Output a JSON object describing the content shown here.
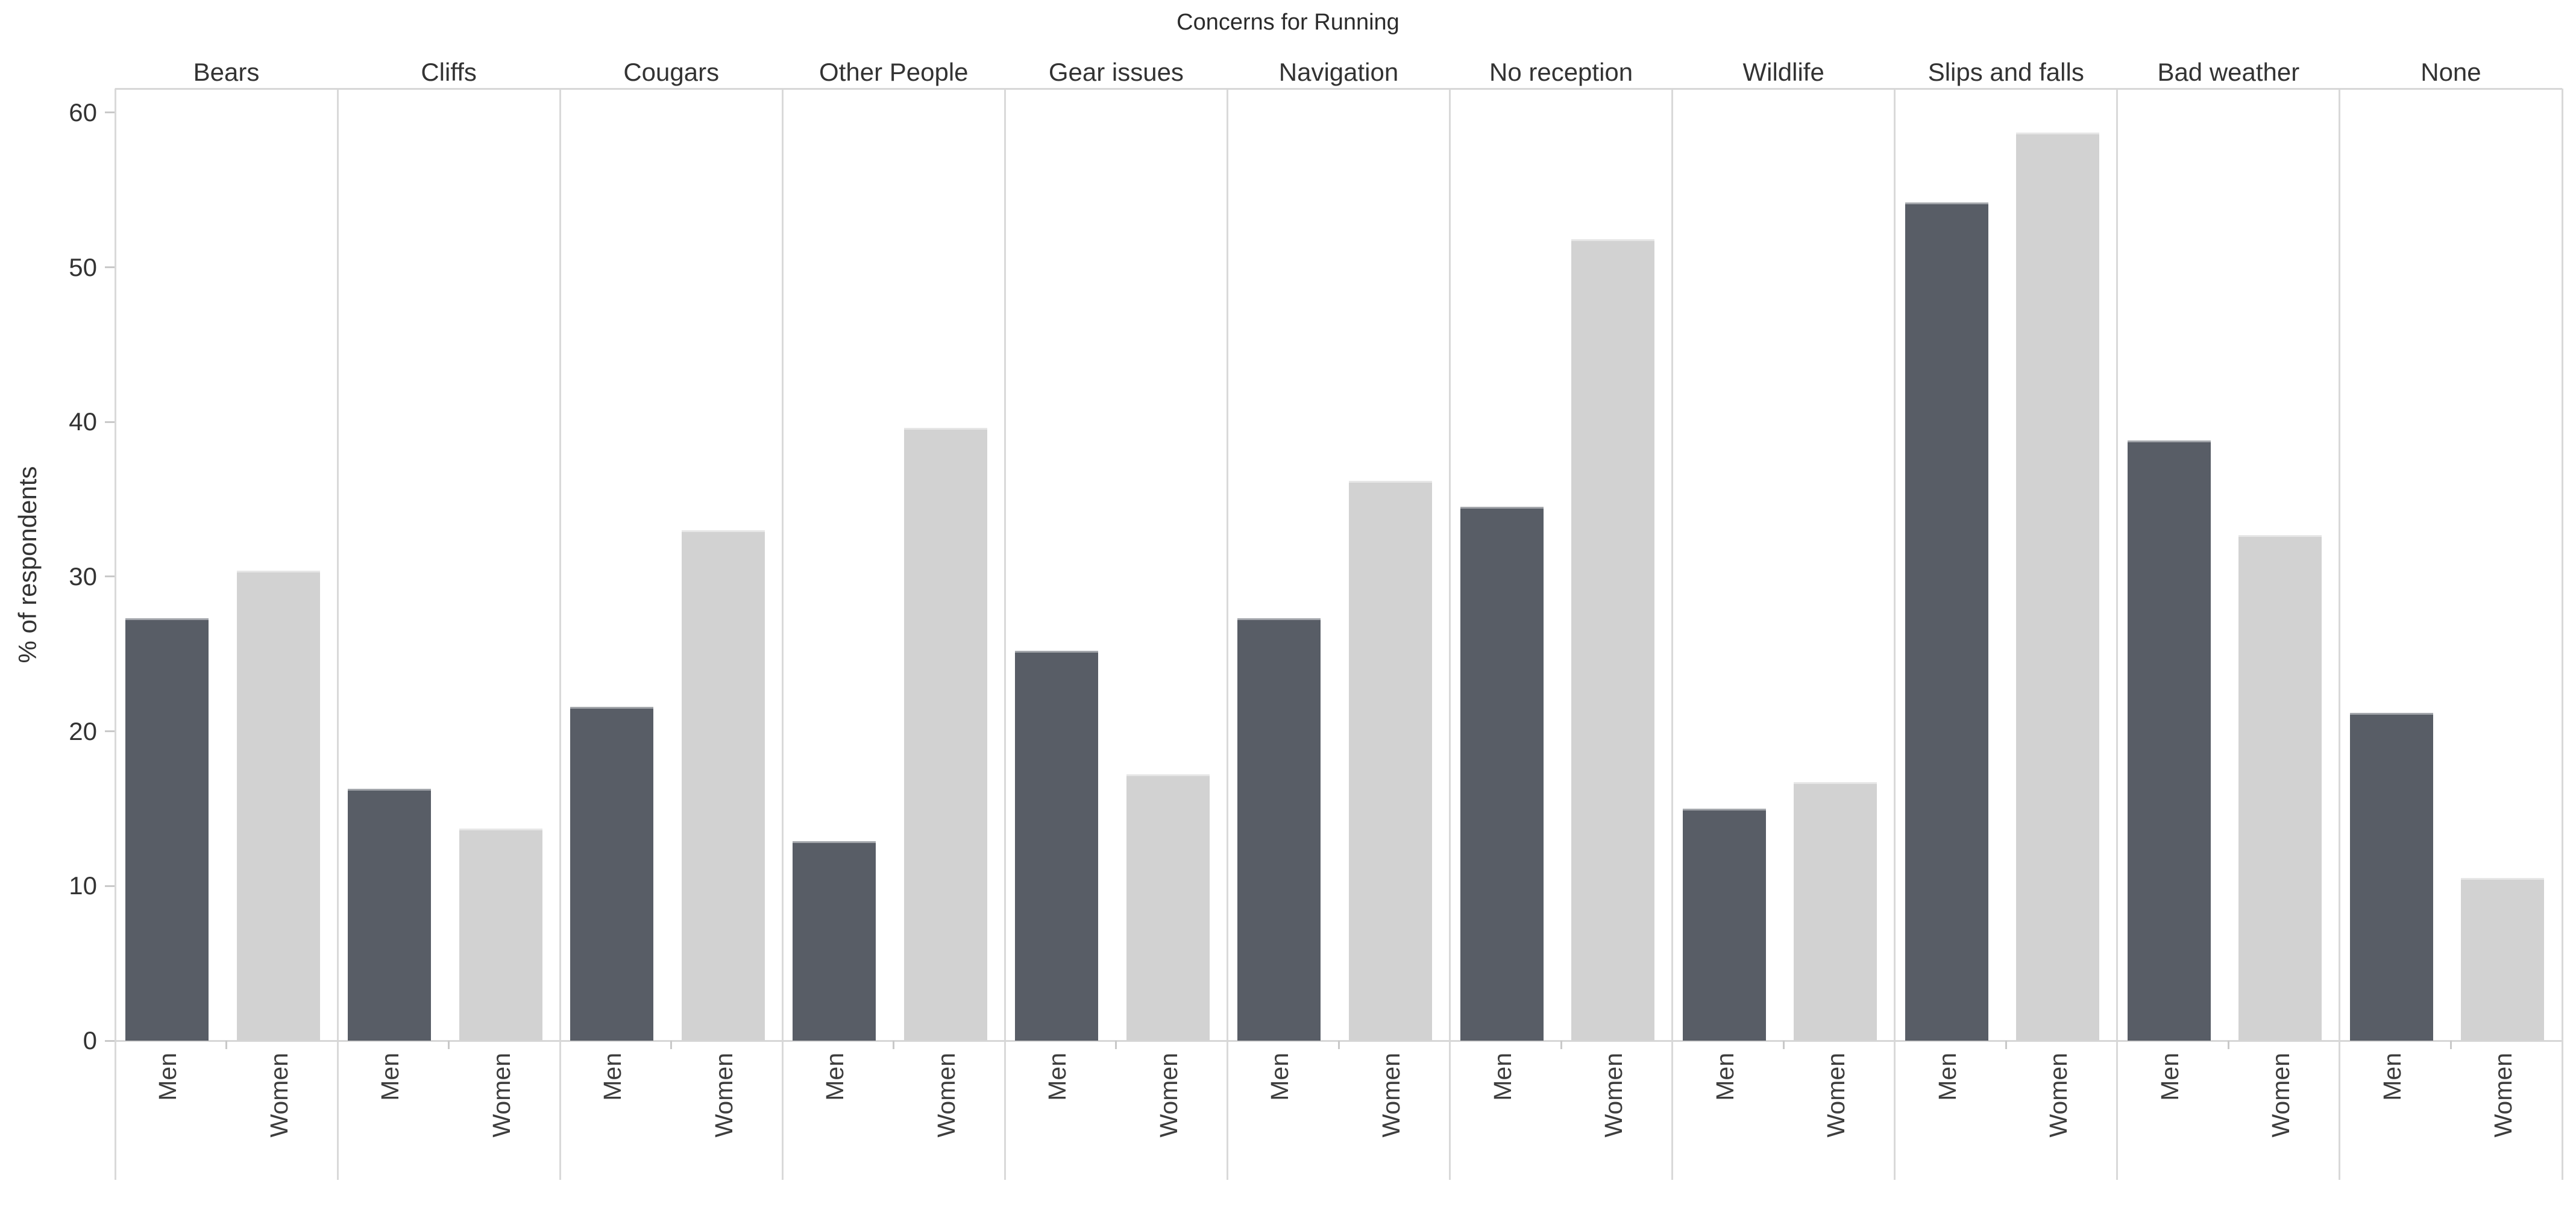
{
  "title": "Concerns for Running",
  "chart_data": {
    "type": "bar",
    "title": "Concerns for Running",
    "ylabel": "% of respondents",
    "xlabel": "",
    "categories": [
      "Bears",
      "Cliffs",
      "Cougars",
      "Other People",
      "Gear issues",
      "Navigation",
      "No reception",
      "Wildlife",
      "Slips and falls",
      "Bad weather",
      "None"
    ],
    "series": [
      {
        "name": "Men",
        "color": "#585d66",
        "values": [
          27.3,
          16.3,
          21.6,
          12.9,
          25.2,
          27.3,
          34.5,
          15.0,
          54.2,
          38.8,
          21.2
        ]
      },
      {
        "name": "Women",
        "color": "#d2d2d2",
        "values": [
          30.4,
          13.7,
          33.0,
          39.6,
          17.2,
          36.2,
          51.8,
          16.7,
          58.7,
          32.7,
          10.5
        ]
      }
    ],
    "bar_group_labels": [
      "Men",
      "Women"
    ],
    "yticks": [
      0,
      10,
      20,
      30,
      40,
      50,
      60
    ],
    "ylim": [
      0,
      61.5
    ],
    "grid": "off",
    "legend_position": "none"
  },
  "colors": {
    "men_bar": "#585d66",
    "women_bar": "#d2d2d2",
    "axis_line": "#d7d7d7",
    "tick_mark": "#c9c9c9",
    "text": "#333333",
    "background": "#ffffff"
  }
}
